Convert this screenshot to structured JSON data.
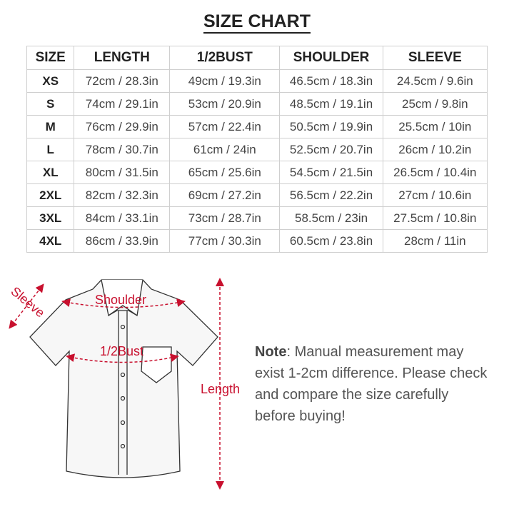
{
  "title": "SIZE CHART",
  "headers": [
    "SIZE",
    "LENGTH",
    "1/2BUST",
    "SHOULDER",
    "SLEEVE"
  ],
  "rows": [
    [
      "XS",
      "72cm / 28.3in",
      "49cm / 19.3in",
      "46.5cm / 18.3in",
      "24.5cm / 9.6in"
    ],
    [
      "S",
      "74cm / 29.1in",
      "53cm / 20.9in",
      "48.5cm / 19.1in",
      "25cm / 9.8in"
    ],
    [
      "M",
      "76cm / 29.9in",
      "57cm / 22.4in",
      "50.5cm / 19.9in",
      "25.5cm / 10in"
    ],
    [
      "L",
      "78cm / 30.7in",
      "61cm / 24in",
      "52.5cm / 20.7in",
      "26cm / 10.2in"
    ],
    [
      "XL",
      "80cm / 31.5in",
      "65cm / 25.6in",
      "54.5cm / 21.5in",
      "26.5cm / 10.4in"
    ],
    [
      "2XL",
      "82cm / 32.3in",
      "69cm / 27.2in",
      "56.5cm / 22.2in",
      "27cm / 10.6in"
    ],
    [
      "3XL",
      "84cm / 33.1in",
      "73cm / 28.7in",
      "58.5cm / 23in",
      "27.5cm / 10.8in"
    ],
    [
      "4XL",
      "86cm / 33.9in",
      "77cm / 30.3in",
      "60.5cm / 23.8in",
      "28cm / 11in"
    ]
  ],
  "diagram": {
    "sleeve": "Sleeve",
    "shoulder": "Shoulder",
    "bust": "1/2Bust",
    "length": "Length",
    "accent": "#c8102e"
  },
  "note": {
    "label": "Note",
    "text": ": Manual measurement may exist 1-2cm difference. Please check and compare the size carefully before buying!"
  }
}
